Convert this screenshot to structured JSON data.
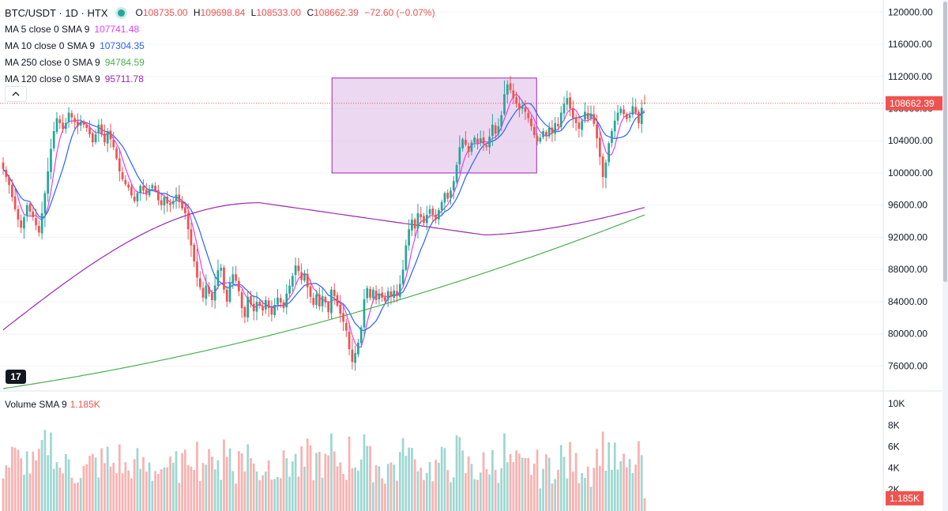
{
  "header": {
    "symbol": "BTC/USDT · 1D · HTX",
    "ohlc": [
      {
        "k": "O",
        "v": "108735.00"
      },
      {
        "k": "H",
        "v": "109698.84"
      },
      {
        "k": "L",
        "v": "108533.00"
      },
      {
        "k": "C",
        "v": "108662.39"
      }
    ],
    "change": "−72.60 (−0.07%)"
  },
  "indicators": [
    {
      "name": "MA 5 close 0 SMA 9",
      "value": "107741.48",
      "color": "#e040fb"
    },
    {
      "name": "MA 10 close 0 SMA 9",
      "value": "107304.35",
      "color": "#2962ff"
    },
    {
      "name": "MA 250 close 0 SMA 9",
      "value": "94784.59",
      "color": "#4caf50"
    },
    {
      "name": "MA 120 close 0 SMA 9",
      "value": "95711.78",
      "color": "#9c27b0"
    }
  ],
  "volume_legend": {
    "name": "Volume SMA 9",
    "value": "1.185K"
  },
  "price_label": "108662.39",
  "volume_label": "1.185K",
  "logo": "17",
  "collapse_icon": "chevron-up-icon",
  "colors": {
    "up": "#26a69a",
    "down": "#ef5350",
    "box_fill": "#e1bee7",
    "box_stroke": "#9c27b0",
    "grid": "#f0f3fa"
  },
  "chart_data": {
    "type": "candlestick",
    "price_axis": {
      "ticks": [
        76000,
        80000,
        84000,
        88000,
        92000,
        96000,
        100000,
        104000,
        108000,
        112000,
        116000,
        120000
      ],
      "range": [
        73000,
        121500
      ]
    },
    "volume_axis": {
      "ticks": [
        2000,
        4000,
        6000,
        8000,
        10000
      ],
      "tick_labels": [
        "2K",
        "4K",
        "6K",
        "8K",
        "10K"
      ],
      "range": [
        0,
        10500
      ]
    },
    "last_price": 108662.39,
    "range_box": {
      "price_high": 111800,
      "price_low": 100000,
      "start_index": 111,
      "end_index": 178
    },
    "closes": [
      100500,
      99500,
      98500,
      97000,
      95500,
      94200,
      93200,
      94500,
      96000,
      95200,
      94500,
      93500,
      92600,
      95000,
      97500,
      100200,
      103000,
      105200,
      106800,
      106200,
      105500,
      106200,
      107500,
      106900,
      106300,
      105800,
      106400,
      106000,
      105600,
      104800,
      103800,
      104800,
      106000,
      104800,
      103800,
      105200,
      104200,
      103200,
      101800,
      100200,
      99200,
      98600,
      98200,
      97200,
      96500,
      97500,
      98400,
      97800,
      97300,
      98000,
      98500,
      97800,
      96600,
      96000,
      97000,
      96200,
      96000,
      96500,
      97300,
      96400,
      95600,
      95000,
      93000,
      91000,
      89000,
      87000,
      85800,
      84500,
      86000,
      85000,
      84200,
      86000,
      87900,
      88200,
      85500,
      84000,
      86400,
      87400,
      86600,
      85300,
      83200,
      82100,
      84600,
      83700,
      82800,
      84000,
      83500,
      82900,
      84200,
      83200,
      82400,
      83600,
      84500,
      83900,
      83200,
      85000,
      86000,
      87200,
      88500,
      87800,
      86700,
      87500,
      85800,
      84600,
      83600,
      84900,
      83400,
      84700,
      83900,
      82700,
      85500,
      84700,
      83500,
      82500,
      81500,
      80400,
      78100,
      76500,
      77600,
      78900,
      80800,
      84300,
      85700,
      84500,
      85500,
      84200,
      85000,
      84500,
      84100,
      85300,
      84600,
      85400,
      84700,
      86200,
      88000,
      91000,
      93000,
      94200,
      93100,
      95000,
      94500,
      93800,
      94800,
      95500,
      94800,
      94200,
      95400,
      96400,
      97500,
      96800,
      97800,
      99000,
      101000,
      103200,
      104200,
      103500,
      102600,
      103800,
      104400,
      103700,
      104300,
      103600,
      103200,
      104500,
      106000,
      104900,
      105800,
      107200,
      109800,
      111000,
      110300,
      109300,
      108600,
      107900,
      108300,
      107600,
      106800,
      105800,
      104700,
      103900,
      104400,
      105200,
      104600,
      105600,
      104900,
      106200,
      105800,
      107500,
      108600,
      109300,
      108000,
      106800,
      106200,
      105500,
      106500,
      107600,
      106700,
      107400,
      106100,
      104300,
      102000,
      99500,
      101300,
      103700,
      105200,
      106500,
      107500,
      108000,
      107300,
      106700,
      107200,
      108300,
      107500,
      106200,
      108100,
      108662
    ]
  }
}
